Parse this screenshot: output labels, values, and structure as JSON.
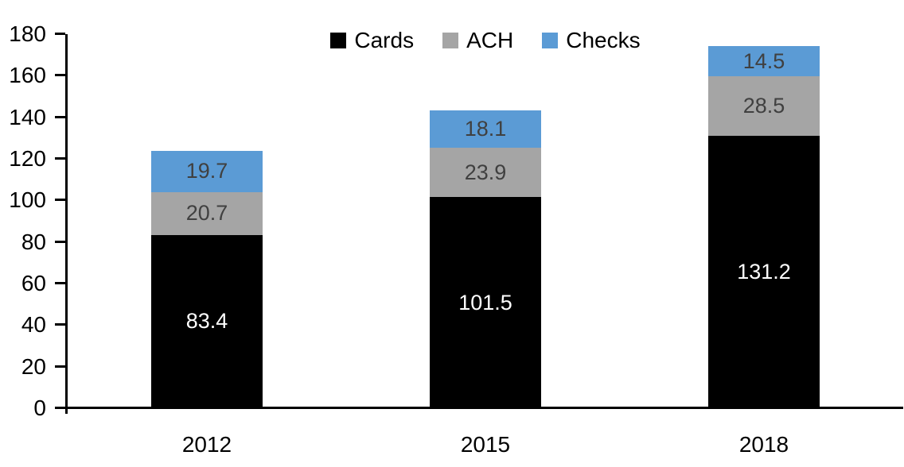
{
  "chart_data": {
    "type": "bar",
    "stacked": true,
    "title": "",
    "xlabel": "",
    "ylabel": "",
    "categories": [
      "2012",
      "2015",
      "2018"
    ],
    "series": [
      {
        "name": "Cards",
        "color": "#000000",
        "label_color": "#ffffff",
        "values": [
          83.4,
          101.5,
          131.2
        ]
      },
      {
        "name": "ACH",
        "color": "#a5a5a5",
        "label_color": "#404040",
        "values": [
          20.7,
          23.9,
          28.5
        ]
      },
      {
        "name": "Checks",
        "color": "#5b9bd5",
        "label_color": "#404040",
        "values": [
          19.7,
          18.1,
          14.5
        ]
      }
    ],
    "ylim": [
      0,
      180
    ],
    "yticks": [
      0,
      20,
      40,
      60,
      80,
      100,
      120,
      140,
      160,
      180
    ],
    "grid": false,
    "legend_position": "top-center",
    "value_labels": "inside-center",
    "value_decimals": 1
  }
}
